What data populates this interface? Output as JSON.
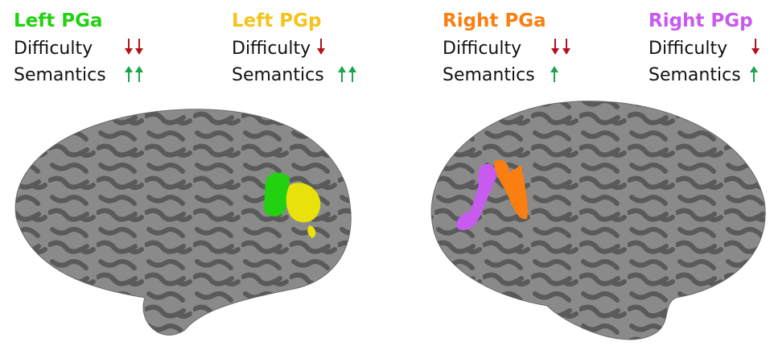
{
  "regions": [
    {
      "title": "Left PGa",
      "rows": [
        "Difficulty",
        "Semantics"
      ]
    },
    {
      "title": "Left PGp",
      "rows": [
        "Difficulty",
        "Semantics"
      ]
    },
    {
      "title": "Right PGa",
      "rows": [
        "Difficulty",
        "Semantics"
      ]
    },
    {
      "title": "Right PGp",
      "rows": [
        "Difficulty",
        "Semantics"
      ]
    }
  ]
}
